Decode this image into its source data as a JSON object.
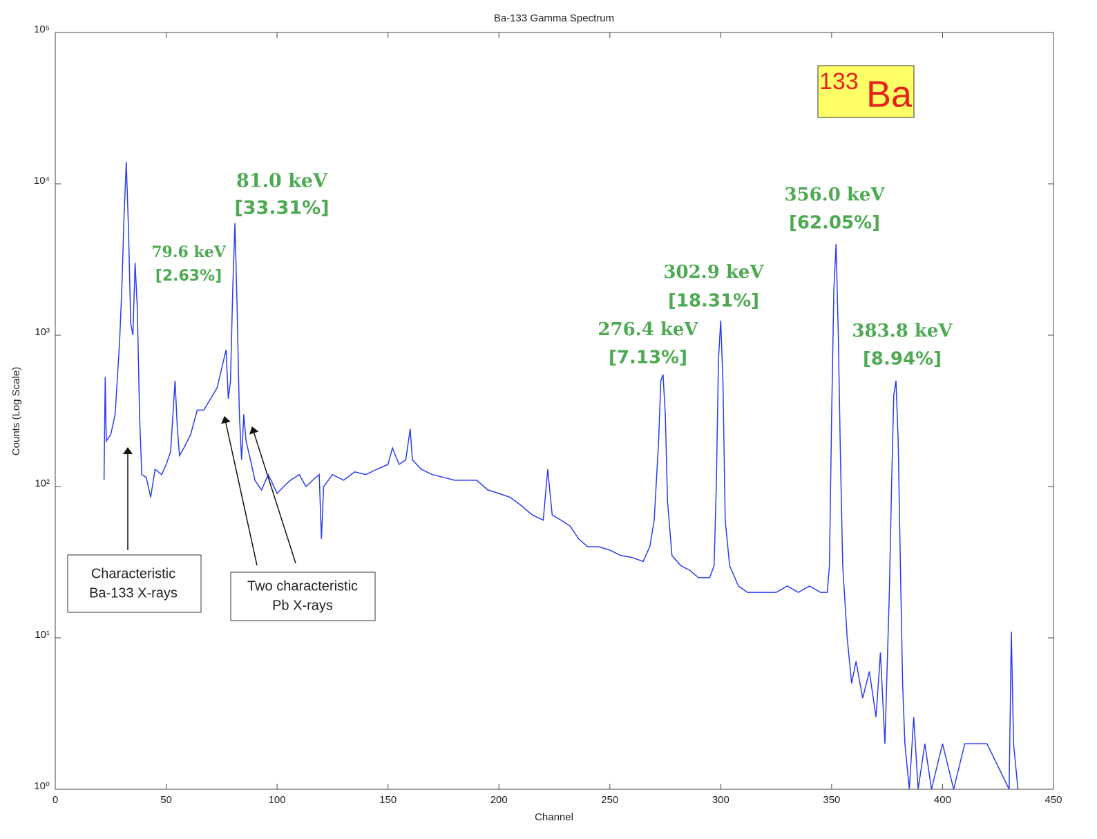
{
  "chart_data": {
    "type": "line",
    "title": "Ba-133 Gamma Spectrum",
    "xlabel": "Channel",
    "ylabel": "Counts (Log Scale)",
    "log_y": true,
    "xlim": [
      0,
      450
    ],
    "xticks": [
      0,
      50,
      100,
      150,
      200,
      250,
      300,
      350,
      400,
      450
    ],
    "ylim": [
      1,
      100000
    ],
    "yticks": [
      {
        "value": 1,
        "label": "10⁰"
      },
      {
        "value": 10,
        "label": "10¹"
      },
      {
        "value": 100,
        "label": "10²"
      },
      {
        "value": 1000,
        "label": "10³"
      },
      {
        "value": 10000,
        "label": "10⁴"
      },
      {
        "value": 100000,
        "label": "10⁵"
      }
    ],
    "x": [
      22,
      22.5,
      23,
      25,
      27,
      29,
      30,
      31,
      32,
      33,
      34,
      35,
      36,
      37,
      38,
      39,
      41,
      43,
      45,
      48,
      50,
      52,
      54,
      55,
      56,
      58,
      61,
      64,
      67,
      70,
      73,
      75,
      77,
      78,
      79,
      80,
      81,
      82,
      83,
      84,
      85,
      86,
      88,
      90,
      93,
      96,
      100,
      103,
      106,
      110,
      113,
      116,
      119,
      120,
      121,
      125,
      130,
      135,
      140,
      145,
      150,
      152,
      155,
      158,
      160,
      161,
      165,
      170,
      175,
      180,
      185,
      190,
      195,
      200,
      205,
      210,
      215,
      220,
      222,
      224,
      228,
      232,
      236,
      240,
      245,
      250,
      255,
      260,
      265,
      268,
      270,
      272,
      273,
      274,
      275,
      276,
      278,
      282,
      286,
      290,
      295,
      297,
      298,
      299,
      300,
      301,
      302,
      304,
      308,
      312,
      316,
      320,
      325,
      330,
      335,
      340,
      345,
      348,
      349,
      350,
      351,
      352,
      353,
      354,
      355,
      357,
      359,
      361,
      364,
      367,
      370,
      372,
      374,
      376,
      377,
      378,
      379,
      380,
      381,
      382,
      383,
      385,
      387,
      389,
      392,
      395,
      400,
      405,
      410,
      420,
      430,
      431,
      432,
      434
    ],
    "series": [
      {
        "name": "Counts",
        "color": "#2b3cf0",
        "values": [
          110,
          530,
          200,
          220,
          300,
          900,
          2000,
          6000,
          14000,
          5000,
          1200,
          1000,
          3000,
          1500,
          300,
          120,
          115,
          85,
          130,
          120,
          140,
          170,
          500,
          250,
          160,
          180,
          220,
          320,
          320,
          380,
          450,
          600,
          800,
          380,
          500,
          2000,
          5500,
          1500,
          300,
          150,
          300,
          200,
          150,
          110,
          95,
          120,
          90,
          100,
          110,
          120,
          100,
          110,
          120,
          45,
          100,
          120,
          110,
          125,
          120,
          130,
          140,
          180,
          140,
          150,
          240,
          150,
          130,
          120,
          115,
          110,
          110,
          110,
          95,
          90,
          85,
          75,
          65,
          60,
          130,
          65,
          60,
          55,
          45,
          40,
          40,
          38,
          35,
          34,
          32,
          40,
          60,
          200,
          500,
          550,
          300,
          80,
          35,
          30,
          28,
          25,
          25,
          30,
          100,
          700,
          1250,
          500,
          60,
          30,
          22,
          20,
          20,
          20,
          20,
          22,
          20,
          22,
          20,
          20,
          30,
          300,
          2000,
          4000,
          1000,
          150,
          30,
          10,
          5,
          7,
          4,
          6,
          3,
          8,
          2,
          20,
          100,
          400,
          500,
          200,
          30,
          5,
          2,
          1,
          3,
          1,
          2,
          1,
          2,
          1,
          2,
          2,
          1,
          11,
          2,
          1
        ]
      }
    ],
    "annotations": [
      {
        "energy": "79.6 keV",
        "intensity": "[2.63%]"
      },
      {
        "energy": "81.0 keV",
        "intensity": "[33.31%]"
      },
      {
        "energy": "276.4 keV",
        "intensity": "[7.13%]"
      },
      {
        "energy": "302.9 keV",
        "intensity": "[18.31%]"
      },
      {
        "energy": "356.0 keV",
        "intensity": "[62.05%]"
      },
      {
        "energy": "383.8 keV",
        "intensity": "[8.94%]"
      }
    ],
    "callouts": [
      {
        "lines": [
          "Characteristic",
          "Ba-133 X-rays"
        ]
      },
      {
        "lines": [
          "Two characteristic",
          "Pb X-rays"
        ]
      }
    ],
    "badge": {
      "mass": "133",
      "element": "Ba"
    }
  }
}
